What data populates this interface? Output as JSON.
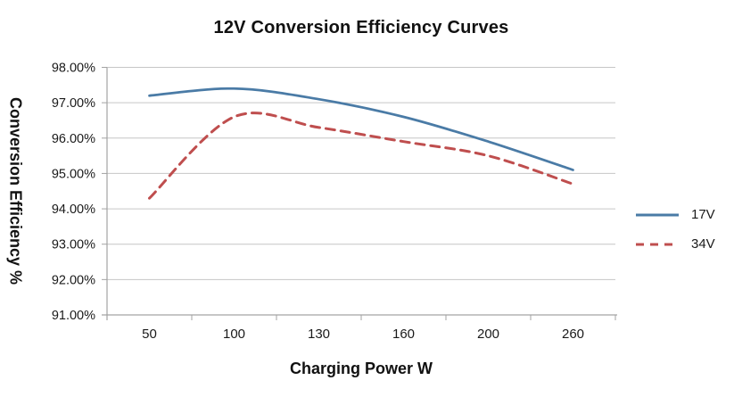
{
  "title": "12V Conversion Efficiency Curves",
  "colors": {
    "series_17v": "#4a7ba6",
    "series_34v": "#bf4e4e",
    "gridline": "#c6c6c6",
    "axis": "#a3a3a3",
    "tick_label": "#1a1a1a"
  },
  "chart_data": {
    "type": "line",
    "title": "12V Conversion Efficiency Curves",
    "xlabel": "Charging Power W",
    "ylabel": "Conversion Efficiency %",
    "categories": [
      "50",
      "100",
      "130",
      "160",
      "200",
      "260"
    ],
    "series": [
      {
        "name": "17V",
        "style": "solid",
        "color": "#4a7ba6",
        "values": [
          97.2,
          97.4,
          97.1,
          96.6,
          95.9,
          95.1
        ]
      },
      {
        "name": "34V",
        "style": "dashed",
        "color": "#bf4e4e",
        "values": [
          94.3,
          96.6,
          96.3,
          95.9,
          95.5,
          94.7
        ]
      }
    ],
    "ylim": [
      91,
      98
    ],
    "ytick_step": 1,
    "ytick_labels": [
      "91.00%",
      "92.00%",
      "93.00%",
      "94.00%",
      "95.00%",
      "96.00%",
      "97.00%",
      "98.00%"
    ],
    "grid": true,
    "legend_position": "right"
  }
}
